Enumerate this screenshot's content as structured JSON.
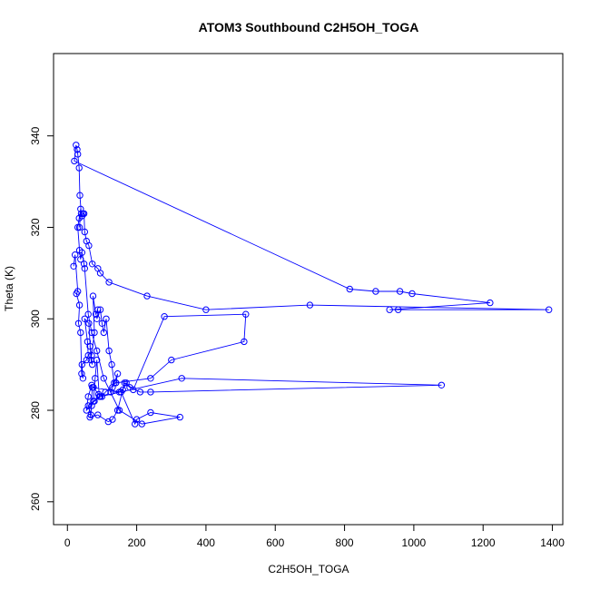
{
  "chart_data": {
    "type": "line",
    "title": "ATOM3 Southbound C2H5OH_TOGA",
    "xlabel": "C2H5OH_TOGA",
    "ylabel": "Theta (K)",
    "xlim": [
      -40,
      1430
    ],
    "ylim": [
      255,
      358
    ],
    "xticks": [
      0,
      200,
      400,
      600,
      800,
      1000,
      1200,
      1400
    ],
    "yticks": [
      260,
      280,
      300,
      320,
      340
    ],
    "grid": false,
    "legend": "none",
    "colors": {
      "series": "#0000ff"
    },
    "markers": "open-circle",
    "series": [
      {
        "x": [
          18,
          22,
          30,
          26,
          35,
          32,
          38,
          41,
          45,
          42,
          55,
          60,
          58,
          50,
          62,
          68,
          72,
          65,
          70,
          78,
          74,
          82,
          88,
          85,
          95,
          100,
          105,
          112,
          120,
          128,
          135,
          140,
          145,
          130,
          125,
          150,
          160,
          170,
          190,
          280,
          515,
          510,
          300,
          240,
          140,
          110,
          100,
          90,
          75,
          70,
          60,
          55,
          78,
          95,
          330,
          1080,
          240,
          210,
          180,
          165,
          145,
          130,
          118,
          88,
          65,
          70,
          75,
          80,
          85,
          92,
          60,
          68,
          72,
          155,
          195,
          200,
          240,
          325,
          215,
          150,
          105,
          85,
          70,
          60,
          50,
          48,
          42,
          38,
          35,
          30,
          34,
          40,
          36,
          34,
          30,
          28,
          25,
          20,
          815,
          890,
          960,
          995,
          1220,
          930,
          955,
          1390,
          700,
          400,
          230,
          120,
          95,
          88,
          72,
          62,
          55,
          50,
          48,
          45,
          42,
          38,
          35
        ],
        "y": [
          311.5,
          314,
          306,
          305.5,
          303,
          299,
          297,
          288,
          287,
          290,
          291,
          292,
          295,
          300,
          299,
          291,
          290,
          294,
          292,
          297,
          305,
          301,
          302,
          300,
          302,
          299,
          297,
          300,
          293,
          290,
          286,
          286,
          288,
          285,
          284,
          284,
          284.5,
          286,
          284.5,
          300.5,
          301,
          295,
          291,
          287,
          286,
          284,
          283,
          283.5,
          285,
          285.5,
          283,
          280,
          282,
          283,
          287,
          285.5,
          284,
          284,
          285,
          286,
          280,
          278,
          277.5,
          279,
          278.5,
          281,
          282,
          287,
          291,
          283,
          281,
          279,
          285,
          284,
          277,
          278,
          279.5,
          278.5,
          277,
          280,
          287,
          293,
          297,
          301,
          311,
          312,
          314.5,
          313,
          315,
          320,
          322,
          323,
          327,
          333,
          336,
          337,
          338,
          334.5,
          306.5,
          306,
          306,
          305.5,
          303.5,
          302,
          302,
          302,
          303,
          302,
          305,
          308,
          310,
          311,
          312,
          316,
          317,
          319,
          323,
          323,
          322.5,
          324,
          320
        ],
        "marker": "circle-open"
      }
    ]
  }
}
